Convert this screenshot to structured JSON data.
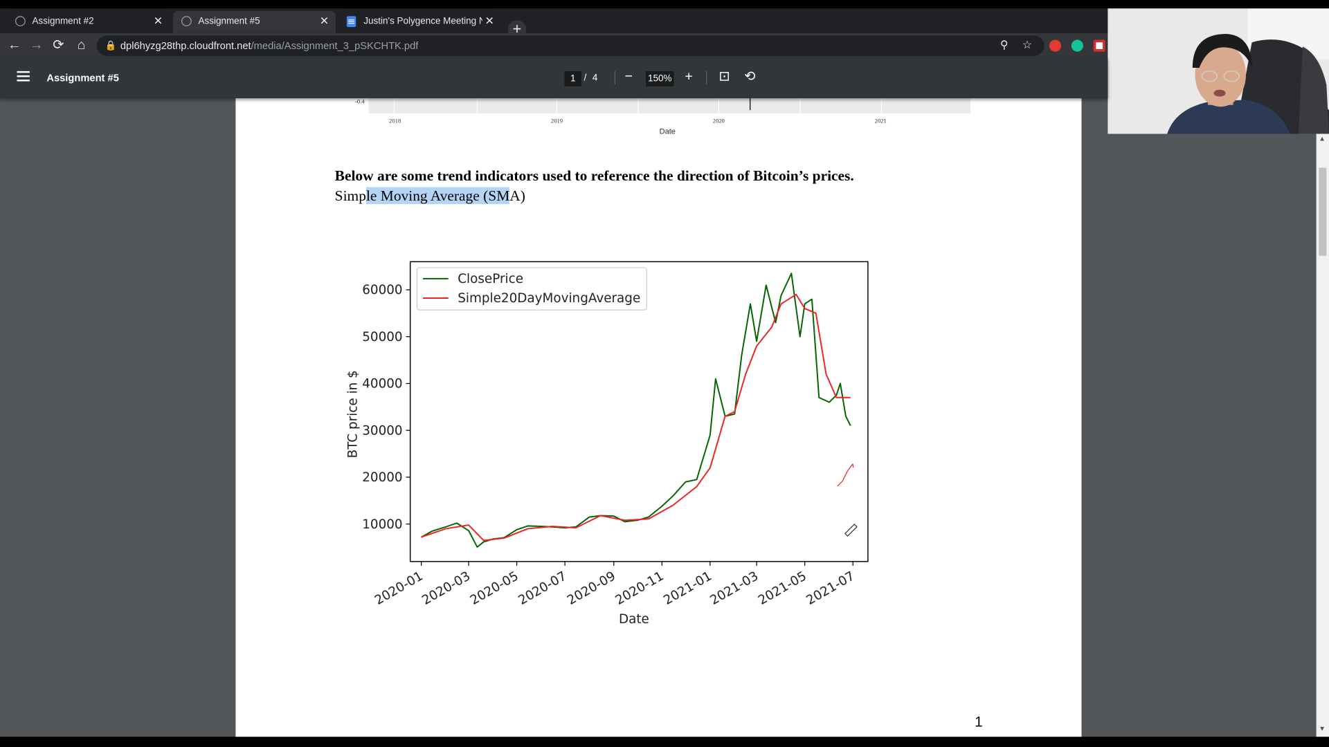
{
  "browser": {
    "tabs": [
      {
        "label": "Assignment #2",
        "active": false
      },
      {
        "label": "Assignment #5",
        "active": true
      },
      {
        "label": "Justin's Polygence Meeting Note",
        "active": false
      }
    ],
    "new_tab": "+",
    "url_host": "dpl6hyzg28thp.cloudfront.net",
    "url_path": "/media/Assignment_3_pSKCHTK.pdf"
  },
  "pdf_viewer": {
    "title": "Assignment #5",
    "page_current": "1",
    "page_separator": "/",
    "page_total": "4",
    "zoom": "150%"
  },
  "document": {
    "top_axis": {
      "ticks": [
        "2018",
        "2019",
        "2020",
        "2021"
      ],
      "xlabel": "Date",
      "ytick": "-0.4"
    },
    "heading": "Below are some trend indicators used to reference the direction of  Bitcoin’s prices.",
    "subheading_parts": [
      "Simp",
      "le Moving Average (SM",
      "A)"
    ],
    "page_number": "1"
  },
  "chart_data": {
    "type": "line",
    "xlabel": "Date",
    "ylabel": "BTC price in $",
    "x_ticks": [
      "2020-01",
      "2020-03",
      "2020-05",
      "2020-07",
      "2020-09",
      "2020-11",
      "2021-01",
      "2021-03",
      "2021-05",
      "2021-07"
    ],
    "y_ticks": [
      10000,
      20000,
      30000,
      40000,
      50000,
      60000
    ],
    "ylim": [
      2000,
      66000
    ],
    "legend_position": "upper-left",
    "series": [
      {
        "name": "ClosePrice",
        "color": "#006400",
        "x": [
          "2020-01-01",
          "2020-01-15",
          "2020-02-01",
          "2020-02-15",
          "2020-03-01",
          "2020-03-12",
          "2020-03-20",
          "2020-04-01",
          "2020-04-15",
          "2020-05-01",
          "2020-05-15",
          "2020-06-01",
          "2020-06-15",
          "2020-07-01",
          "2020-07-15",
          "2020-08-01",
          "2020-08-15",
          "2020-09-01",
          "2020-09-15",
          "2020-10-01",
          "2020-10-15",
          "2020-11-01",
          "2020-11-15",
          "2020-12-01",
          "2020-12-15",
          "2021-01-01",
          "2021-01-08",
          "2021-01-20",
          "2021-02-01",
          "2021-02-10",
          "2021-02-21",
          "2021-03-01",
          "2021-03-13",
          "2021-03-25",
          "2021-04-01",
          "2021-04-14",
          "2021-04-25",
          "2021-05-01",
          "2021-05-10",
          "2021-05-19",
          "2021-06-01",
          "2021-06-10",
          "2021-06-15",
          "2021-06-22",
          "2021-06-28"
        ],
        "values": [
          7200,
          8500,
          9400,
          10200,
          8600,
          5100,
          6200,
          6800,
          7100,
          8800,
          9600,
          9500,
          9400,
          9200,
          9400,
          11500,
          11800,
          11700,
          10500,
          10800,
          11500,
          13800,
          16000,
          19000,
          19500,
          29000,
          41000,
          33000,
          33500,
          46000,
          57000,
          49000,
          61000,
          53000,
          58800,
          63500,
          50000,
          57000,
          58000,
          37000,
          36000,
          37500,
          40000,
          33000,
          31000
        ]
      },
      {
        "name": "Simple20DayMovingAverage",
        "color": "#ee2222",
        "x": [
          "2020-01-01",
          "2020-02-01",
          "2020-03-01",
          "2020-03-20",
          "2020-04-15",
          "2020-05-15",
          "2020-06-15",
          "2020-07-15",
          "2020-08-15",
          "2020-09-15",
          "2020-10-15",
          "2020-11-15",
          "2020-12-15",
          "2021-01-01",
          "2021-01-20",
          "2021-02-01",
          "2021-02-15",
          "2021-03-01",
          "2021-03-20",
          "2021-04-01",
          "2021-04-20",
          "2021-05-01",
          "2021-05-15",
          "2021-05-28",
          "2021-06-10",
          "2021-06-28"
        ],
        "values": [
          7200,
          9000,
          9800,
          6500,
          7000,
          9000,
          9500,
          9200,
          11800,
          10800,
          11100,
          14000,
          18000,
          22000,
          33000,
          34000,
          42000,
          48000,
          52000,
          57000,
          59000,
          56000,
          55000,
          42000,
          37000,
          37000
        ]
      }
    ]
  }
}
